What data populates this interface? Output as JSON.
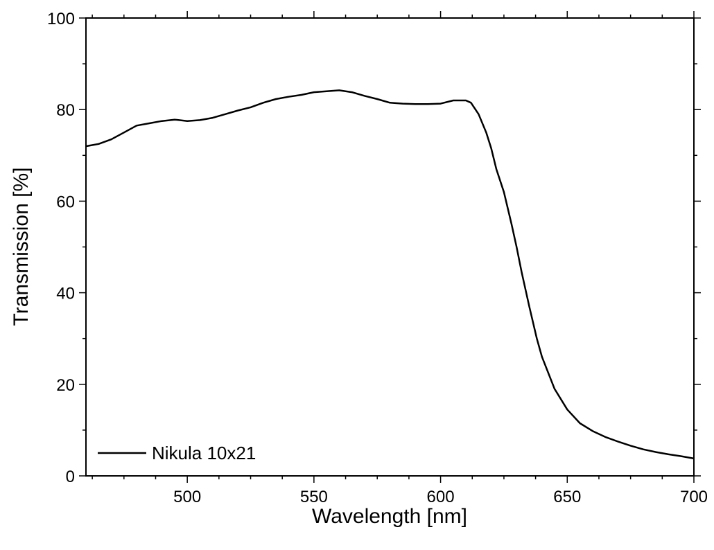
{
  "chart_data": {
    "type": "line",
    "title": "",
    "xlabel": "Wavelength [nm]",
    "ylabel": "Transmission [%]",
    "xlim": [
      460,
      700
    ],
    "ylim": [
      0,
      100
    ],
    "x_ticks": [
      500,
      550,
      600,
      650,
      700
    ],
    "y_ticks": [
      0,
      20,
      40,
      60,
      80,
      100
    ],
    "x_minor_step": 12.5,
    "y_minor_step": 10,
    "grid": false,
    "legend_position": "bottom-left",
    "series": [
      {
        "name": "Nikula 10x21",
        "color": "#000000",
        "x": [
          460,
          465,
          470,
          475,
          480,
          485,
          490,
          495,
          500,
          505,
          510,
          515,
          520,
          525,
          530,
          535,
          540,
          545,
          550,
          555,
          560,
          565,
          570,
          575,
          580,
          585,
          590,
          595,
          600,
          605,
          610,
          612,
          615,
          618,
          620,
          622,
          625,
          628,
          630,
          632,
          635,
          638,
          640,
          645,
          650,
          655,
          660,
          665,
          670,
          675,
          680,
          685,
          690,
          695,
          700
        ],
        "y": [
          72,
          72.5,
          73.5,
          75,
          76.5,
          77,
          77.5,
          77.8,
          77.5,
          77.7,
          78.2,
          79,
          79.8,
          80.5,
          81.5,
          82.3,
          82.8,
          83.2,
          83.8,
          84,
          84.2,
          83.8,
          83,
          82.3,
          81.5,
          81.3,
          81.2,
          81.2,
          81.3,
          82,
          82,
          81.5,
          79,
          75,
          71.5,
          67,
          62,
          55,
          50,
          44.5,
          37,
          30,
          26,
          19,
          14.5,
          11.5,
          9.8,
          8.5,
          7.5,
          6.6,
          5.8,
          5.2,
          4.7,
          4.3,
          3.8
        ]
      }
    ]
  }
}
